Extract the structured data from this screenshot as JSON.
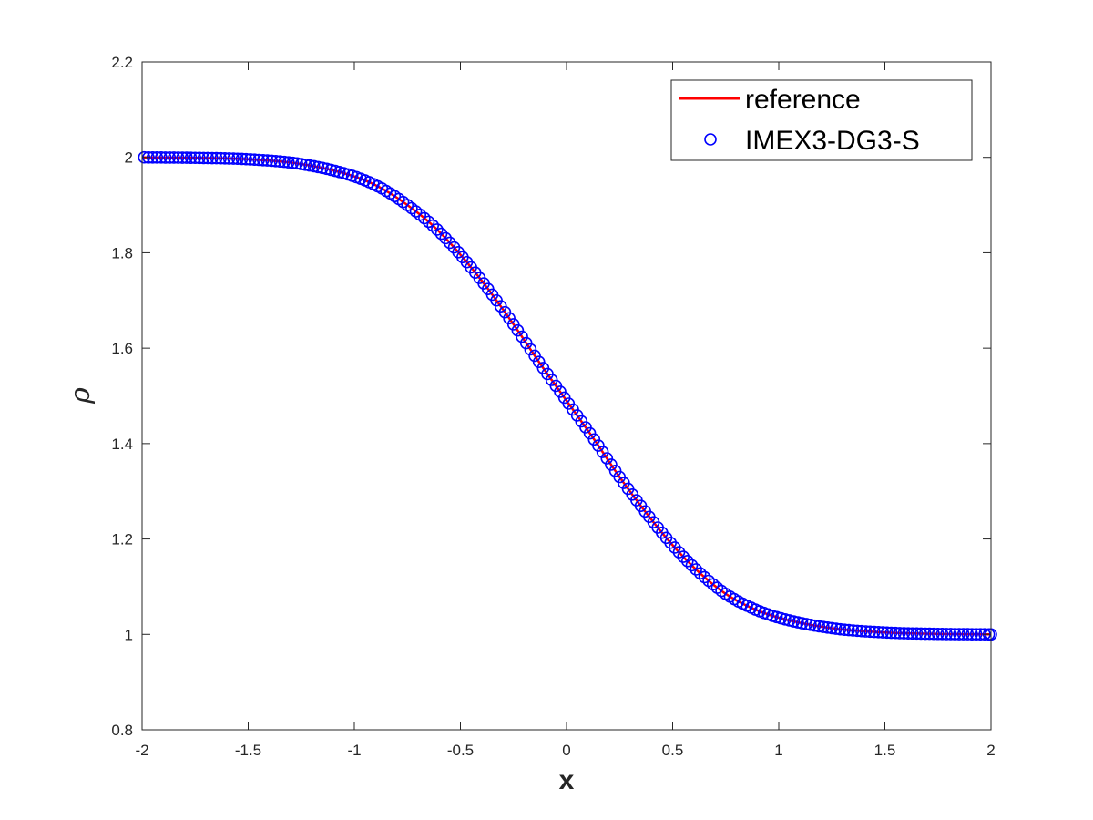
{
  "chart_data": {
    "type": "line",
    "title": "",
    "xlabel": "x",
    "ylabel": "ρ",
    "xlim": [
      -2,
      2
    ],
    "ylim": [
      0.8,
      2.2
    ],
    "xticks": [
      -2,
      -1.5,
      -1,
      -0.5,
      0,
      0.5,
      1,
      1.5,
      2
    ],
    "xtick_labels": [
      "-2",
      "-1.5",
      "-1",
      "-0.5",
      "0",
      "0.5",
      "1",
      "1.5",
      "2"
    ],
    "yticks": [
      0.8,
      1,
      1.2,
      1.4,
      1.6,
      1.8,
      2,
      2.2
    ],
    "ytick_labels": [
      "0.8",
      "1",
      "1.2",
      "1.4",
      "1.6",
      "1.8",
      "2",
      "2.2"
    ],
    "grid": false,
    "legend_position": "top-right",
    "series": [
      {
        "name": "reference",
        "style": "solid line",
        "color": "#ff0000",
        "x": [
          -2.0,
          -1.75,
          -1.5,
          -1.25,
          -1.0,
          -0.875,
          -0.75,
          -0.625,
          -0.5,
          -0.375,
          -0.25,
          -0.125,
          0.0,
          0.125,
          0.25,
          0.375,
          0.5,
          0.625,
          0.75,
          0.875,
          1.0,
          1.25,
          1.5,
          1.75,
          2.0
        ],
        "y": [
          2.0,
          1.999,
          1.996,
          1.986,
          1.96,
          1.936,
          1.9,
          1.855,
          1.796,
          1.727,
          1.65,
          1.568,
          1.49,
          1.412,
          1.33,
          1.255,
          1.187,
          1.13,
          1.085,
          1.055,
          1.035,
          1.013,
          1.004,
          1.001,
          1.0
        ]
      },
      {
        "name": "IMEX3-DG3-S",
        "style": "circle markers",
        "color": "#0000ff",
        "x": [
          -2.0,
          -1.75,
          -1.5,
          -1.25,
          -1.0,
          -0.875,
          -0.75,
          -0.625,
          -0.5,
          -0.375,
          -0.25,
          -0.125,
          0.0,
          0.125,
          0.25,
          0.375,
          0.5,
          0.625,
          0.75,
          0.875,
          1.0,
          1.25,
          1.5,
          1.75,
          2.0
        ],
        "y": [
          2.0,
          1.999,
          1.996,
          1.986,
          1.96,
          1.936,
          1.9,
          1.855,
          1.796,
          1.727,
          1.65,
          1.568,
          1.49,
          1.412,
          1.33,
          1.255,
          1.187,
          1.13,
          1.085,
          1.055,
          1.035,
          1.013,
          1.004,
          1.001,
          1.0
        ],
        "marker_count": 200
      }
    ]
  }
}
